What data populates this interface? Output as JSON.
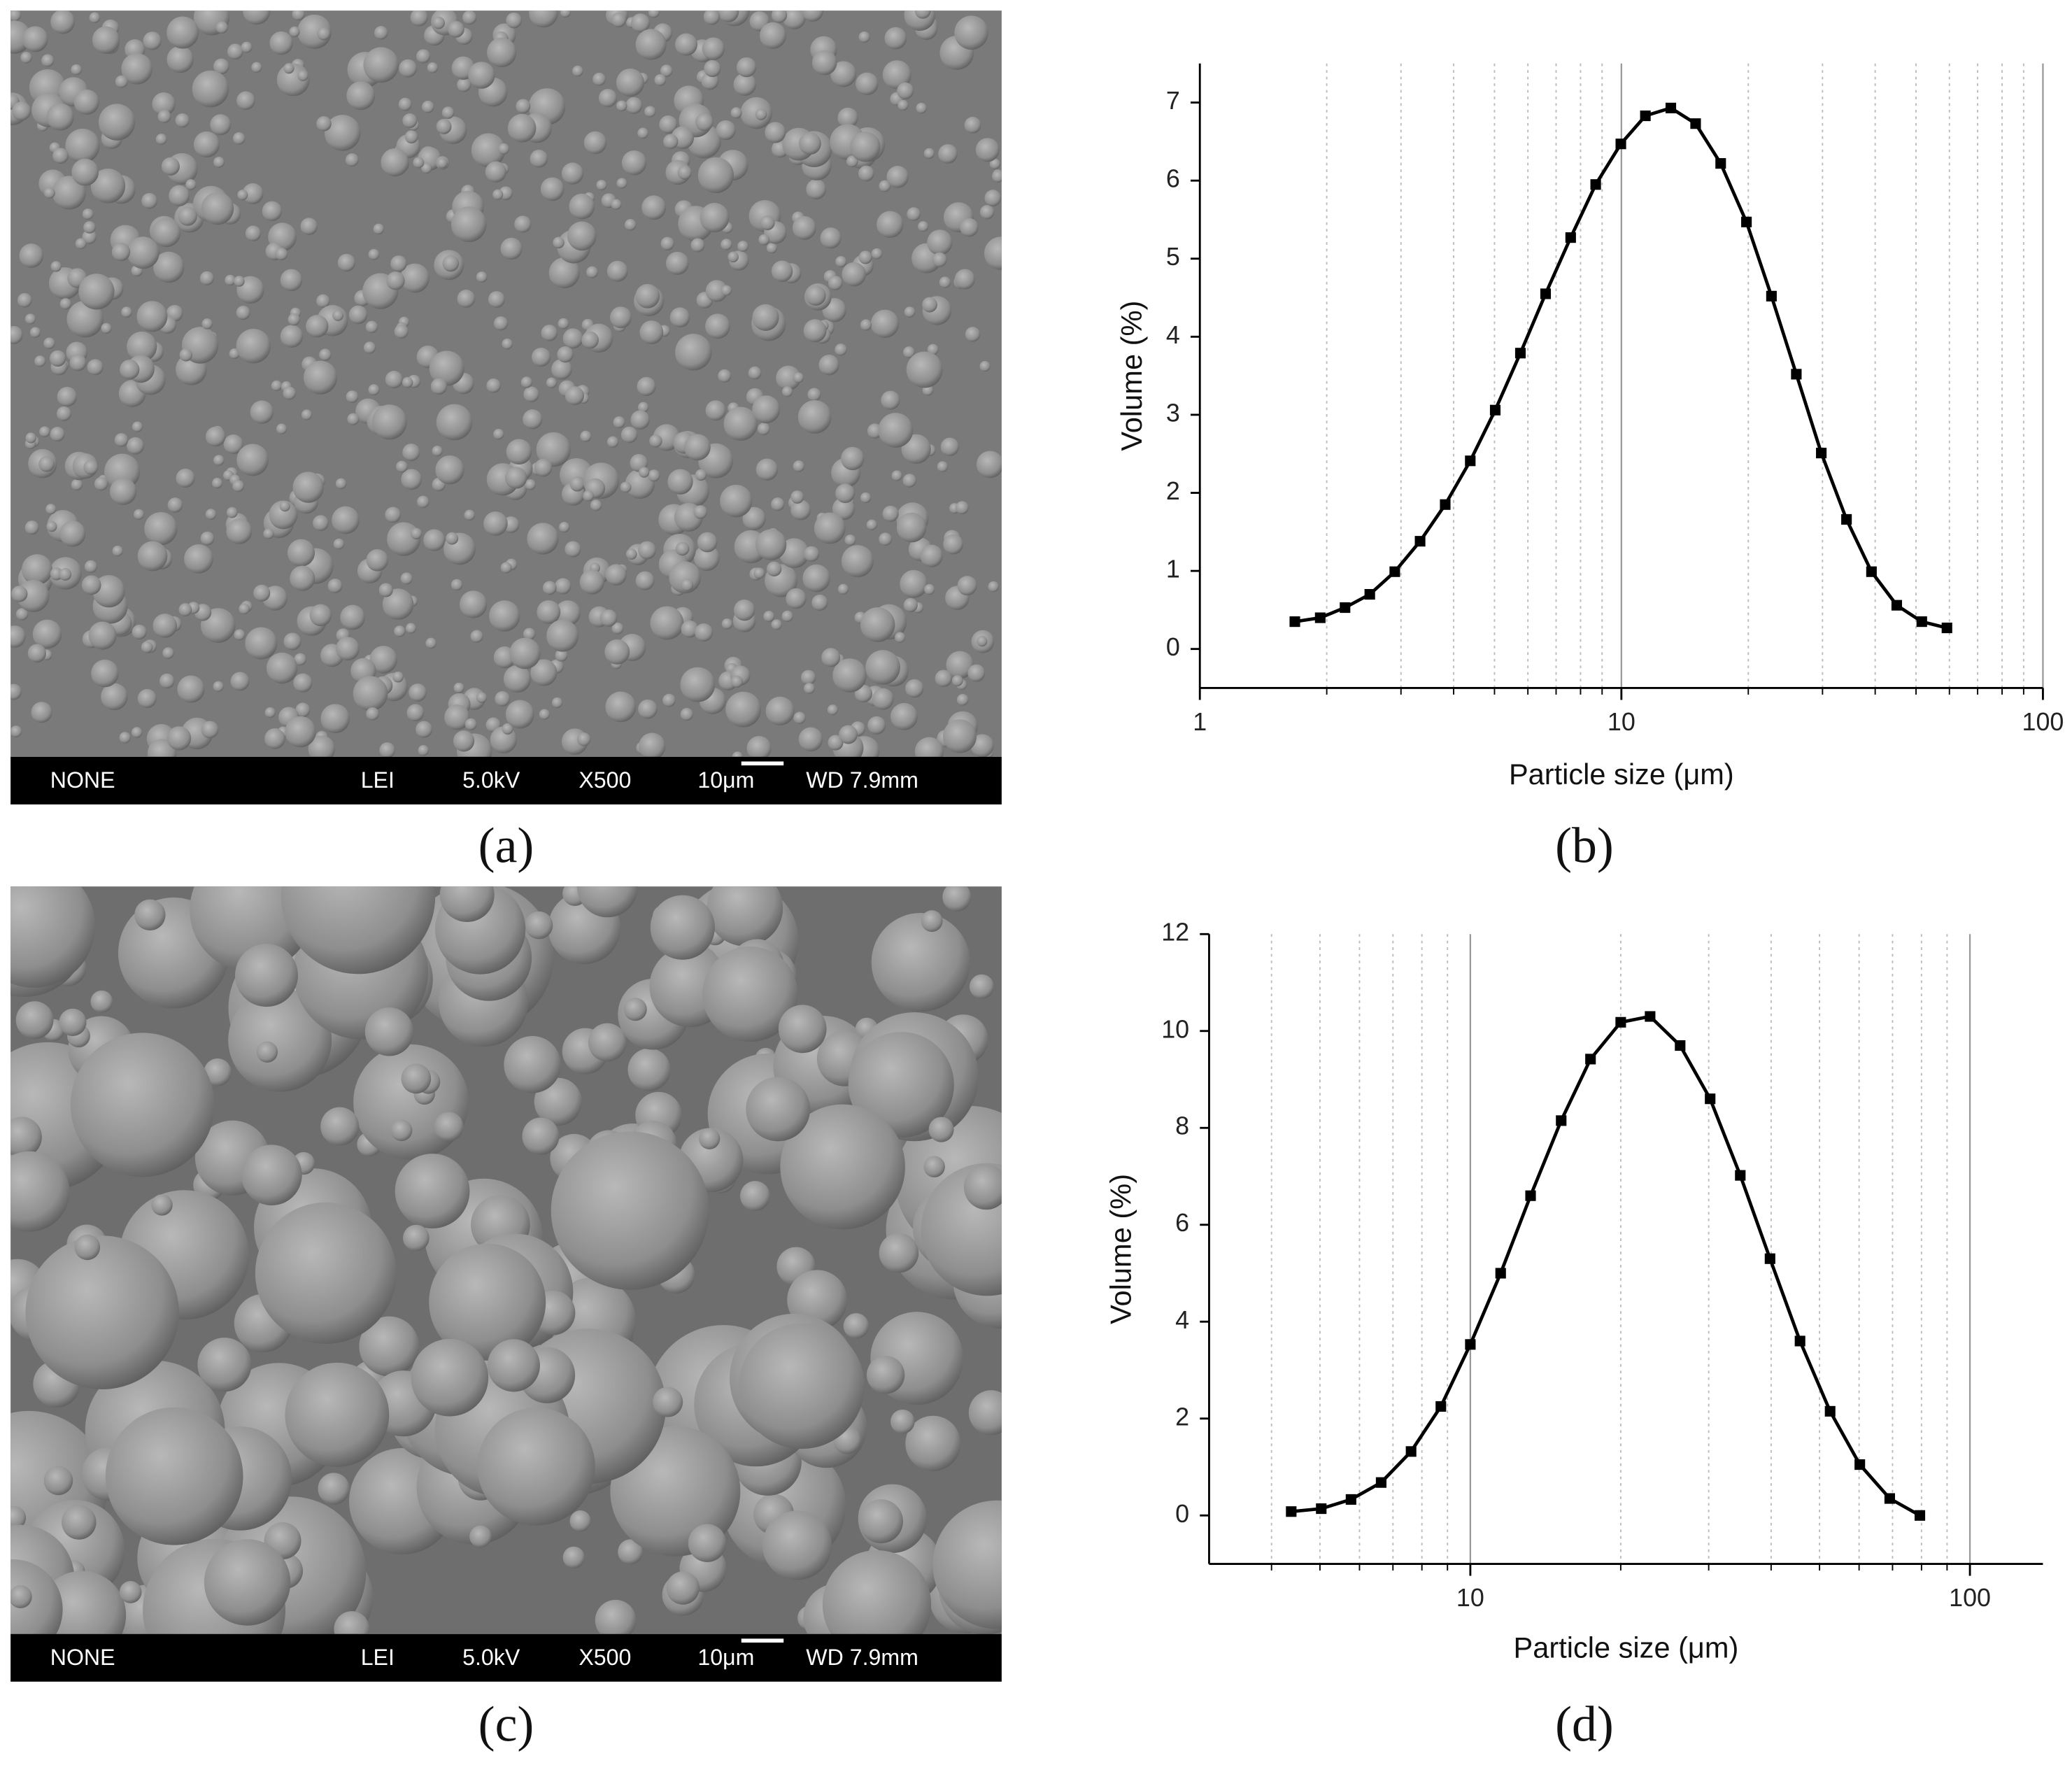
{
  "sem_images": [
    {
      "label": "(a)",
      "info": [
        "NONE",
        "LEI",
        "5.0kV",
        "X500",
        "10μm",
        "WD 7.9mm"
      ]
    },
    {
      "label": "(c)",
      "info": [
        "NONE",
        "LEI",
        "5.0kV",
        "X500",
        "10μm",
        "WD 7.9mm"
      ]
    }
  ],
  "chart_data": [
    {
      "type": "line",
      "label": "(b)",
      "xlabel": "Particle size (μm)",
      "ylabel": "Volume (%)",
      "xscale": "log",
      "xlim": [
        1,
        100
      ],
      "ylim": [
        -0.5,
        7.5
      ],
      "xticks": [
        1,
        10,
        100
      ],
      "minor_xticks": [
        2,
        3,
        4,
        5,
        6,
        7,
        8,
        9,
        20,
        30,
        40,
        50,
        60,
        70,
        80,
        90
      ],
      "yticks": [
        0,
        1,
        2,
        3,
        4,
        5,
        6,
        7
      ],
      "grid": true,
      "marker": "square",
      "color": "#000000",
      "x": [
        1.68,
        1.93,
        2.21,
        2.53,
        2.9,
        3.33,
        3.82,
        4.38,
        5.02,
        5.76,
        6.61,
        7.58,
        8.69,
        9.97,
        11.4,
        13.1,
        15.0,
        17.2,
        19.8,
        22.7,
        26.0,
        29.8,
        34.2,
        39.2,
        45.0,
        51.6,
        59.2
      ],
      "values": [
        0.35,
        0.4,
        0.53,
        0.7,
        0.99,
        1.38,
        1.85,
        2.41,
        3.06,
        3.79,
        4.55,
        5.27,
        5.95,
        6.47,
        6.83,
        6.93,
        6.73,
        6.22,
        5.47,
        4.52,
        3.52,
        2.51,
        1.66,
        0.99,
        0.56,
        0.35,
        0.27
      ]
    },
    {
      "type": "line",
      "label": "(d)",
      "xlabel": "Particle size (μm)",
      "ylabel": "Volume (%)",
      "xscale": "log",
      "xlim": [
        3,
        140
      ],
      "ylim": [
        -1,
        12
      ],
      "xticks": [
        10,
        100
      ],
      "minor_xticks": [
        4,
        5,
        6,
        7,
        8,
        9,
        20,
        30,
        40,
        50,
        60,
        70,
        80,
        90
      ],
      "yticks": [
        0,
        2,
        4,
        6,
        8,
        10,
        12
      ],
      "grid": true,
      "marker": "square",
      "color": "#000000",
      "x": [
        4.38,
        5.03,
        5.77,
        6.63,
        7.61,
        8.73,
        10.0,
        11.5,
        13.2,
        15.2,
        17.4,
        20.0,
        22.9,
        26.3,
        30.2,
        34.7,
        39.8,
        45.7,
        52.5,
        60.2,
        69.1,
        79.4
      ],
      "values": [
        0.08,
        0.14,
        0.33,
        0.68,
        1.32,
        2.25,
        3.53,
        5.0,
        6.6,
        8.15,
        9.42,
        10.18,
        10.3,
        9.7,
        8.6,
        7.02,
        5.3,
        3.6,
        2.15,
        1.05,
        0.35,
        0.0
      ]
    }
  ]
}
